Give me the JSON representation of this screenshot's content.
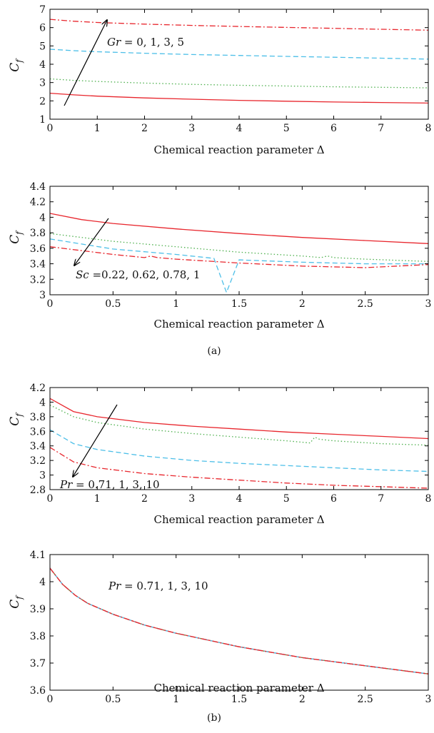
{
  "captions": [
    "(a)",
    "(b)"
  ],
  "chart_data": [
    {
      "type": "line",
      "xlabel": "Chemical reaction parameter Δ",
      "ylabel_main": "C",
      "ylabel_sub": "f",
      "xlim": [
        0,
        8
      ],
      "ylim": [
        1,
        7
      ],
      "xticks": [
        "0",
        "1",
        "2",
        "3",
        "4",
        "5",
        "6",
        "7",
        "8"
      ],
      "yticks": [
        "1",
        "2",
        "3",
        "4",
        "5",
        "6",
        "7"
      ],
      "annotation": {
        "italic": "Gr",
        "rest": " = 0, 1, 3, 5"
      },
      "series": [
        {
          "color": "#e8262d",
          "dash": "solid",
          "x": [
            0,
            0.5,
            1,
            2,
            3,
            4,
            5,
            6,
            7,
            8
          ],
          "values": [
            2.42,
            2.33,
            2.26,
            2.16,
            2.09,
            2.03,
            1.98,
            1.94,
            1.91,
            1.88
          ]
        },
        {
          "color": "#4db04d",
          "dash": "dot",
          "x": [
            0,
            0.5,
            1,
            2,
            3,
            4,
            5,
            6,
            7,
            8
          ],
          "values": [
            3.2,
            3.12,
            3.06,
            2.97,
            2.9,
            2.85,
            2.81,
            2.77,
            2.74,
            2.71
          ]
        },
        {
          "color": "#4dbfe8",
          "dash": "dash",
          "x": [
            0,
            0.5,
            1,
            2,
            3,
            4,
            5,
            6,
            7,
            8
          ],
          "values": [
            4.82,
            4.74,
            4.68,
            4.6,
            4.53,
            4.48,
            4.43,
            4.38,
            4.33,
            4.28
          ]
        },
        {
          "color": "#e8262d",
          "dash": "dashdot",
          "x": [
            0,
            0.5,
            1,
            2,
            3,
            4,
            5,
            6,
            7,
            8
          ],
          "values": [
            6.45,
            6.35,
            6.28,
            6.19,
            6.12,
            6.06,
            6.01,
            5.96,
            5.91,
            5.86
          ]
        }
      ]
    },
    {
      "type": "line",
      "xlabel": "Chemical reaction parameter Δ",
      "ylabel_main": "C",
      "ylabel_sub": "f",
      "xlim": [
        0,
        3
      ],
      "ylim": [
        3,
        4.4
      ],
      "xticks": [
        "0",
        "0.5",
        "1",
        "1.5",
        "2",
        "2.5",
        "3"
      ],
      "yticks": [
        "3",
        "3.2",
        "3.4",
        "3.6",
        "3.8",
        "4",
        "4.2",
        "4.4"
      ],
      "annotation": {
        "italic": "Sc",
        "rest": " =0.22, 0.62, 0.78, 1"
      },
      "series": [
        {
          "color": "#e8262d",
          "dash": "solid",
          "x": [
            0,
            0.25,
            0.5,
            1,
            1.5,
            2,
            2.5,
            3
          ],
          "values": [
            4.05,
            3.97,
            3.92,
            3.85,
            3.79,
            3.74,
            3.7,
            3.66
          ]
        },
        {
          "color": "#4db04d",
          "dash": "dot",
          "x": [
            0,
            0.5,
            1,
            1.5,
            2,
            2.15,
            2.2,
            2.25,
            2.5,
            3
          ],
          "values": [
            3.79,
            3.69,
            3.62,
            3.55,
            3.5,
            3.48,
            3.5,
            3.48,
            3.46,
            3.43
          ]
        },
        {
          "color": "#4dbfe8",
          "dash": "dash",
          "x": [
            0,
            0.5,
            1,
            1.3,
            1.4,
            1.5,
            2,
            2.5,
            3
          ],
          "values": [
            3.72,
            3.59,
            3.52,
            3.47,
            3.03,
            3.45,
            3.42,
            3.4,
            3.4
          ]
        },
        {
          "color": "#e8262d",
          "dash": "dashdot",
          "x": [
            0,
            0.5,
            0.75,
            0.8,
            0.85,
            1,
            1.5,
            2,
            2.5,
            3
          ],
          "values": [
            3.62,
            3.52,
            3.48,
            3.5,
            3.48,
            3.46,
            3.41,
            3.37,
            3.35,
            3.39
          ]
        }
      ]
    },
    {
      "type": "line",
      "xlabel": "Chemical reaction parameter Δ",
      "ylabel_main": "C",
      "ylabel_sub": "f",
      "xlim": [
        0,
        8
      ],
      "ylim": [
        2.8,
        4.2
      ],
      "xticks": [
        "0",
        "1",
        "2",
        "3",
        "4",
        "5",
        "6",
        "7",
        "8"
      ],
      "yticks": [
        "2.8",
        "3",
        "3.2",
        "3.4",
        "3.6",
        "3.8",
        "4",
        "4.2"
      ],
      "annotation": {
        "italic": "Pr",
        "rest": " = 0.71, 1, 3, 10"
      },
      "series": [
        {
          "color": "#e8262d",
          "dash": "solid",
          "x": [
            0,
            0.5,
            1,
            2,
            3,
            4,
            5,
            6,
            7,
            8
          ],
          "values": [
            4.05,
            3.87,
            3.8,
            3.72,
            3.67,
            3.63,
            3.59,
            3.56,
            3.53,
            3.5
          ]
        },
        {
          "color": "#4db04d",
          "dash": "dot",
          "x": [
            0,
            0.5,
            1,
            2,
            3,
            4,
            5,
            5.5,
            5.6,
            5.7,
            6,
            7,
            8
          ],
          "values": [
            3.96,
            3.8,
            3.72,
            3.63,
            3.57,
            3.52,
            3.47,
            3.44,
            3.52,
            3.49,
            3.47,
            3.43,
            3.41
          ]
        },
        {
          "color": "#4dbfe8",
          "dash": "dash",
          "x": [
            0,
            0.5,
            1,
            2,
            3,
            4,
            5,
            6,
            7,
            8
          ],
          "values": [
            3.62,
            3.43,
            3.35,
            3.26,
            3.2,
            3.16,
            3.13,
            3.1,
            3.07,
            3.05
          ]
        },
        {
          "color": "#e8262d",
          "dash": "dashdot",
          "x": [
            0,
            0.5,
            1,
            2,
            3,
            4,
            5,
            6,
            7,
            8
          ],
          "values": [
            3.38,
            3.18,
            3.1,
            3.02,
            2.97,
            2.93,
            2.89,
            2.86,
            2.84,
            2.82
          ]
        }
      ]
    },
    {
      "type": "line",
      "xlabel": "Chemical reaction parameter Δ",
      "ylabel_main": "C",
      "ylabel_sub": "f",
      "xlim": [
        0,
        3
      ],
      "ylim": [
        3.6,
        4.1
      ],
      "xticks": [
        "0",
        "0.5",
        "1",
        "1.5",
        "2",
        "2.5",
        "3"
      ],
      "yticks": [
        "3.6",
        "3.7",
        "3.8",
        "3.9",
        "4",
        "4.1"
      ],
      "annotation": {
        "italic": "Pr",
        "rest": " = 0.71, 1, 3, 10"
      },
      "series": [
        {
          "color": "#e8262d",
          "dash": "solid",
          "x": [
            0,
            0.05,
            0.1,
            0.2,
            0.3,
            0.5,
            0.75,
            1,
            1.5,
            2,
            2.5,
            3
          ],
          "values": [
            4.05,
            4.02,
            3.99,
            3.95,
            3.92,
            3.88,
            3.84,
            3.81,
            3.76,
            3.72,
            3.69,
            3.66
          ]
        },
        {
          "color": "#4db04d",
          "dash": "dot",
          "x": [
            0,
            0.05,
            0.1,
            0.2,
            0.3,
            0.5,
            0.75,
            1,
            1.5,
            2,
            2.5,
            3
          ],
          "values": [
            4.05,
            4.02,
            3.99,
            3.95,
            3.92,
            3.88,
            3.84,
            3.81,
            3.76,
            3.72,
            3.69,
            3.66
          ]
        },
        {
          "color": "#4dbfe8",
          "dash": "dash",
          "x": [
            0,
            0.05,
            0.1,
            0.2,
            0.3,
            0.5,
            0.75,
            1,
            1.5,
            2,
            2.5,
            3
          ],
          "values": [
            4.05,
            4.02,
            3.99,
            3.95,
            3.92,
            3.88,
            3.84,
            3.81,
            3.76,
            3.72,
            3.69,
            3.66
          ]
        },
        {
          "color": "#e8262d",
          "dash": "dashdot",
          "x": [
            0,
            0.05,
            0.1,
            0.2,
            0.3,
            0.5,
            0.75,
            1,
            1.5,
            2,
            2.5,
            3
          ],
          "values": [
            4.05,
            4.02,
            3.99,
            3.95,
            3.92,
            3.88,
            3.84,
            3.81,
            3.76,
            3.72,
            3.69,
            3.66
          ]
        }
      ]
    }
  ]
}
